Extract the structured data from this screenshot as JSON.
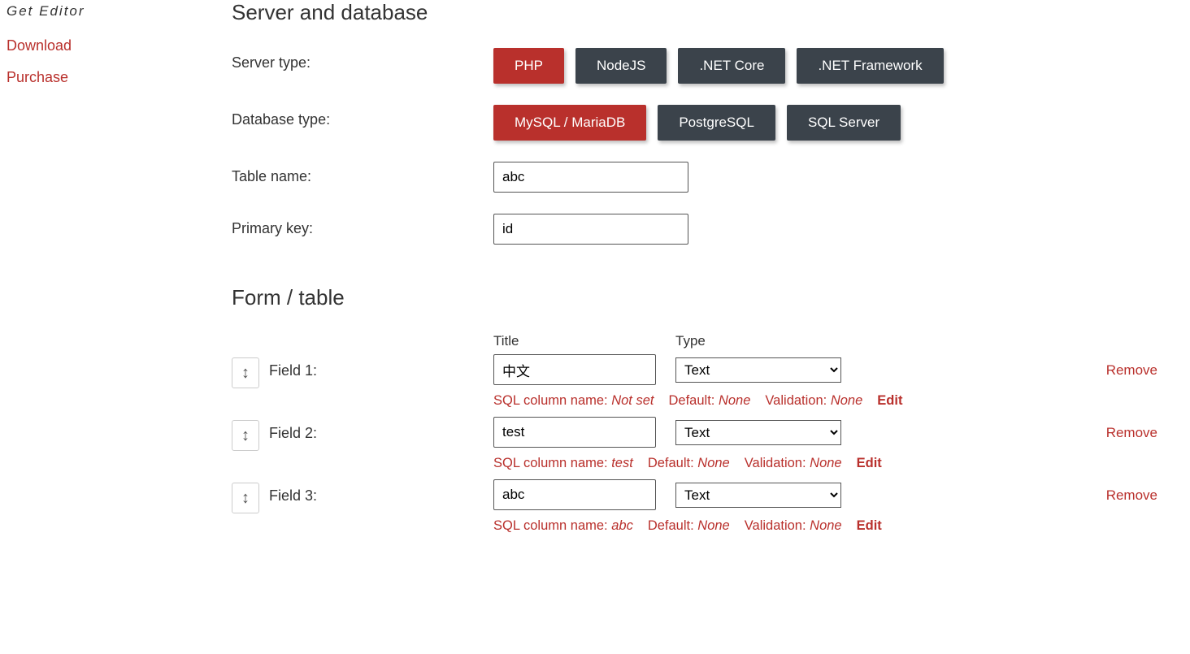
{
  "colors": {
    "accent": "#b9302c",
    "button_dark": "#3b434b",
    "text": "#333333"
  },
  "sidebar": {
    "items": [
      {
        "label": "Get Editor",
        "italic": true
      },
      {
        "label": "Download",
        "italic": false
      },
      {
        "label": "Purchase",
        "italic": false
      }
    ]
  },
  "section_server": {
    "heading": "Server and database",
    "server_type_label": "Server type:",
    "server_buttons": [
      {
        "label": "PHP",
        "active": true
      },
      {
        "label": "NodeJS",
        "active": false
      },
      {
        "label": ".NET Core",
        "active": false
      },
      {
        "label": ".NET Framework",
        "active": false
      }
    ],
    "db_type_label": "Database type:",
    "db_buttons": [
      {
        "label": "MySQL / MariaDB",
        "active": true
      },
      {
        "label": "PostgreSQL",
        "active": false
      },
      {
        "label": "SQL Server",
        "active": false
      }
    ],
    "table_name_label": "Table name:",
    "table_name_value": "abc",
    "primary_key_label": "Primary key:",
    "primary_key_value": "id"
  },
  "section_form": {
    "heading": "Form / table",
    "col_title": "Title",
    "col_type": "Type",
    "remove_label": "Remove",
    "edit_label": "Edit",
    "meta_sql_label": "SQL column name:",
    "meta_default_label": "Default:",
    "meta_validation_label": "Validation:",
    "fields": [
      {
        "label": "Field 1:",
        "title_value": "中文",
        "type_value": "Text",
        "sql_col": "Not set",
        "default": "None",
        "validation": "None"
      },
      {
        "label": "Field 2:",
        "title_value": "test",
        "type_value": "Text",
        "sql_col": "test",
        "default": "None",
        "validation": "None"
      },
      {
        "label": "Field 3:",
        "title_value": "abc",
        "type_value": "Text",
        "sql_col": "abc",
        "default": "None",
        "validation": "None"
      }
    ]
  }
}
